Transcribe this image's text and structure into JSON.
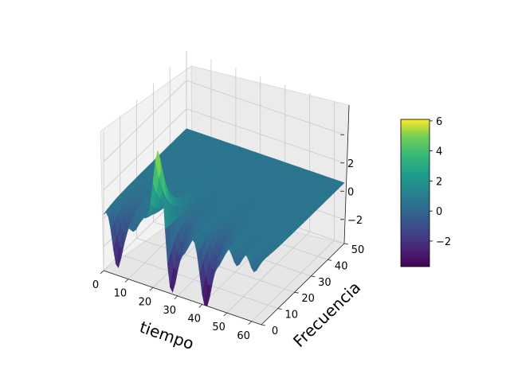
{
  "chart_data": {
    "type": "surface3d",
    "title": "",
    "xlabel": "tiempo",
    "ylabel": "Frecuencia",
    "zlabel": "",
    "x_range": [
      0,
      64
    ],
    "y_range": [
      0,
      50
    ],
    "z_range": [
      -3.7,
      6.1
    ],
    "x_ticks": [
      0,
      10,
      20,
      30,
      40,
      50,
      60
    ],
    "y_ticks": [
      0,
      10,
      20,
      30,
      40,
      50
    ],
    "z_ticks": [
      -2,
      0,
      2,
      4
    ],
    "z_tick_labels": [
      "−2",
      "0",
      "2",
      ""
    ],
    "colormap": "viridis",
    "grid": true,
    "surface_features": [
      {
        "x": 22,
        "y": 2,
        "z": 6.1,
        "kind": "peak"
      },
      {
        "x": 28,
        "y": 2,
        "z": -3.5,
        "kind": "trough"
      },
      {
        "x": 42,
        "y": 2,
        "z": -3.6,
        "kind": "trough"
      },
      {
        "x": 6,
        "y": 2,
        "z": -2.5,
        "kind": "trough"
      }
    ],
    "plateau_z": 0.6,
    "colorbar": {
      "range": [
        -3.7,
        6.1
      ],
      "ticks": [
        -2,
        0,
        2,
        4,
        6
      ],
      "tick_labels": [
        "−2",
        "0",
        "2",
        "4",
        "6"
      ],
      "placement": "right"
    }
  }
}
